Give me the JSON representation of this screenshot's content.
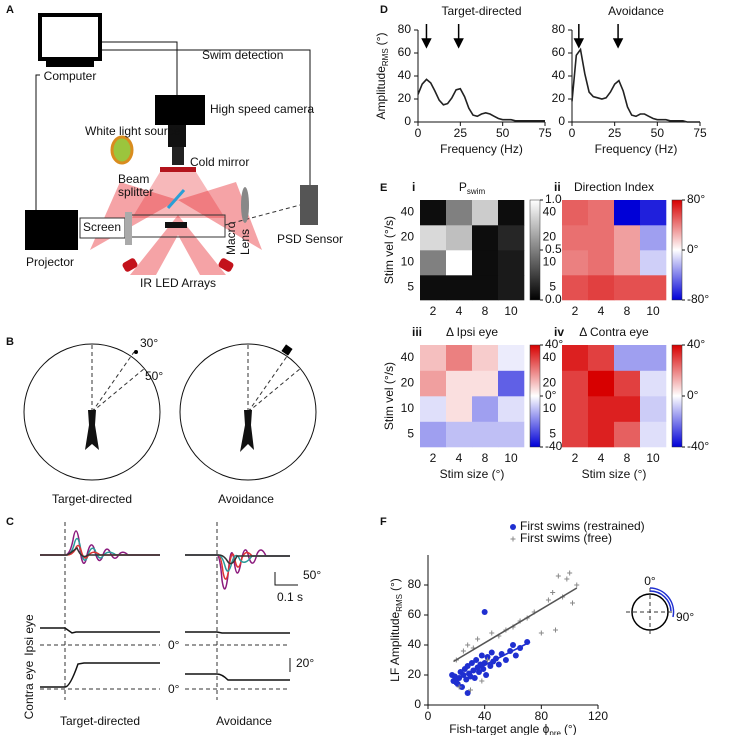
{
  "panel_labels": [
    "A",
    "B",
    "C",
    "D",
    "E",
    "F"
  ],
  "diagram_a": {
    "computer": "Computer",
    "swim_detection": "Swim detection",
    "camera": "High speed camera",
    "light_source": "White light source",
    "beam_splitter": [
      "Beam",
      "splitter"
    ],
    "cold_mirror": "Cold mirror",
    "projector": "Projector",
    "screen": "Screen",
    "macro_lens": [
      "Macro",
      "Lens"
    ],
    "psd_sensor": "PSD Sensor",
    "ir_led": "IR LED Arrays"
  },
  "diagram_b": {
    "angle_1": "30°",
    "angle_2": "50°",
    "labels": [
      "Target-directed",
      "Avoidance"
    ]
  },
  "diagram_c": {
    "scale_angle": "50°",
    "scale_time": "0.1 s",
    "ipsi": "Ipsi eye",
    "contra": "Contra eye",
    "zero_labels": [
      "0°",
      "0°"
    ],
    "scale_eye": "20°",
    "labels": [
      "Target-directed",
      "Avoidance"
    ]
  },
  "chart_data": [
    {
      "type": "line",
      "title": "Target-directed",
      "xlabel": "Frequency (Hz)",
      "ylabel": {
        "main": "Amplitude",
        "sub": "RMS",
        "unit": "(°)"
      },
      "x": [
        0,
        2.5,
        5,
        7.5,
        10,
        12.5,
        15,
        17.5,
        20,
        22.5,
        25,
        27.5,
        30,
        32.5,
        35,
        37.5,
        40,
        42.5,
        45,
        47.5,
        50,
        52.5,
        55,
        57.5,
        60,
        62.5,
        65,
        67.5,
        70,
        72.5,
        75
      ],
      "series": [
        {
          "color": "#222222",
          "values": [
            24,
            33,
            37,
            34,
            27,
            19,
            15,
            16,
            21,
            28,
            29,
            22,
            12,
            6,
            5,
            7,
            8,
            7,
            5,
            3,
            2,
            2,
            2,
            1,
            1,
            1,
            1,
            1,
            1,
            1,
            1
          ]
        }
      ],
      "arrows_x": [
        5,
        24
      ],
      "xlim": [
        0,
        75
      ],
      "xticks": [
        0,
        25,
        50,
        75
      ],
      "ylim": [
        0,
        80
      ],
      "yticks": [
        0,
        20,
        40,
        60,
        80
      ]
    },
    {
      "type": "line",
      "title": "Avoidance",
      "xlabel": "Frequency (Hz)",
      "x": [
        0,
        2.5,
        5,
        7.5,
        10,
        12.5,
        15,
        17.5,
        20,
        22.5,
        25,
        27.5,
        30,
        32.5,
        35,
        37.5,
        40,
        42.5,
        45,
        47.5,
        50,
        52.5,
        55,
        57.5,
        60,
        62.5,
        65,
        67.5,
        70,
        72.5,
        75
      ],
      "series": [
        {
          "color": "#222222",
          "values": [
            18,
            58,
            63,
            42,
            26,
            22,
            21,
            20,
            21,
            26,
            33,
            36,
            27,
            13,
            6,
            5,
            7,
            7,
            5,
            3,
            2,
            2,
            2,
            1,
            1,
            1,
            1,
            0,
            0,
            0,
            0
          ]
        }
      ],
      "arrows_x": [
        4,
        27
      ],
      "xlim": [
        0,
        75
      ],
      "xticks": [
        0,
        25,
        50,
        75
      ],
      "ylim": [
        0,
        80
      ],
      "yticks": [
        0,
        20,
        40,
        60,
        80
      ]
    },
    {
      "type": "heatmap",
      "panel": "i",
      "title": {
        "main": "P",
        "sub": "swim"
      },
      "ylabel": "Stim vel (°/s)",
      "categories": [
        2,
        4,
        8,
        10
      ],
      "y_categories": [
        5,
        10,
        20,
        40
      ],
      "values": [
        [
          0.05,
          0.05,
          0.05,
          0.1
        ],
        [
          0.5,
          1.0,
          0.05,
          0.1
        ],
        [
          0.85,
          0.75,
          0.05,
          0.15
        ],
        [
          0.05,
          0.5,
          0.8,
          0.05
        ]
      ],
      "colormap": "gray",
      "clim": [
        0,
        1
      ],
      "cticks": [
        {
          "value": 0,
          "label": "0.0"
        },
        0.5,
        {
          "value": 1,
          "label": "1.0"
        }
      ]
    },
    {
      "type": "heatmap",
      "panel": "ii",
      "title": "Direction Index",
      "categories": [
        2,
        4,
        8,
        10
      ],
      "y_categories": [
        5,
        10,
        20,
        40
      ],
      "values": [
        [
          55,
          60,
          55,
          55
        ],
        [
          40,
          45,
          30,
          -15
        ],
        [
          45,
          45,
          30,
          -30
        ],
        [
          50,
          45,
          -80,
          -70
        ]
      ],
      "colormap": "bwr",
      "clim": [
        -80,
        80
      ],
      "cticks": [
        {
          "value": 80,
          "label": "80°"
        },
        {
          "value": 0,
          "label": "0°"
        },
        {
          "value": -80,
          "label": "-80°"
        }
      ]
    },
    {
      "type": "heatmap",
      "panel": "iii",
      "title": "Δ Ipsi eye",
      "ylabel": "Stim vel (°/s)",
      "xlabel": "Stim size (°)",
      "categories": [
        2,
        4,
        8,
        10
      ],
      "y_categories": [
        5,
        10,
        20,
        40
      ],
      "values": [
        [
          -15,
          -10,
          -10,
          -10
        ],
        [
          -5,
          5,
          -15,
          -5
        ],
        [
          15,
          5,
          5,
          -25
        ],
        [
          10,
          20,
          8,
          -3
        ]
      ],
      "colormap": "bwr",
      "clim": [
        -40,
        40
      ],
      "cticks": [
        {
          "value": 40,
          "label": "40°"
        },
        {
          "value": 0,
          "label": "0°"
        },
        {
          "value": -40,
          "label": "-40°"
        }
      ]
    },
    {
      "type": "heatmap",
      "panel": "iv",
      "title": "Δ Contra eye",
      "xlabel": "Stim size (°)",
      "categories": [
        2,
        4,
        8,
        10
      ],
      "y_categories": [
        5,
        10,
        20,
        40
      ],
      "values": [
        [
          30,
          35,
          25,
          -5
        ],
        [
          30,
          35,
          35,
          -8
        ],
        [
          30,
          40,
          30,
          -5
        ],
        [
          35,
          30,
          -15,
          -15
        ]
      ],
      "colormap": "bwr",
      "clim": [
        -40,
        40
      ],
      "cticks": [
        {
          "value": 40,
          "label": "40°"
        },
        {
          "value": 0,
          "label": "0°"
        },
        {
          "value": -40,
          "label": "-40°"
        }
      ]
    },
    {
      "type": "scatter",
      "xlabel": {
        "main": "Fish-target angle ϕ",
        "sub": "pre",
        "unit": "(°)"
      },
      "ylabel": {
        "main": "LF Amplitude",
        "sub": "RMS",
        "unit": "(°)"
      },
      "series": [
        {
          "name": "First swims (restrained)",
          "color": "#1f2fd0",
          "marker": "circle",
          "x": [
            17,
            18,
            19,
            20,
            21,
            22,
            23,
            24,
            25,
            26,
            27,
            28,
            29,
            30,
            31,
            32,
            33,
            34,
            35,
            36,
            37,
            38,
            39,
            40,
            41,
            42,
            44,
            45,
            46,
            48,
            50,
            52,
            55,
            58,
            60,
            62,
            65,
            40,
            28,
            70
          ],
          "values": [
            20,
            16,
            19,
            15,
            14,
            18,
            22,
            12,
            20,
            24,
            17,
            26,
            21,
            19,
            28,
            23,
            18,
            30,
            25,
            22,
            27,
            33,
            24,
            28,
            20,
            32,
            26,
            35,
            29,
            31,
            27,
            34,
            30,
            36,
            40,
            33,
            38,
            62,
            8,
            42
          ]
        },
        {
          "name": "First swims (free)",
          "color": "#888888",
          "marker": "plus",
          "x": [
            20,
            22,
            25,
            28,
            30,
            32,
            35,
            38,
            42,
            45,
            50,
            55,
            60,
            65,
            70,
            75,
            80,
            85,
            88,
            90,
            95,
            98,
            100,
            102,
            105,
            92
          ],
          "values": [
            30,
            12,
            36,
            40,
            10,
            38,
            44,
            16,
            30,
            48,
            46,
            50,
            52,
            56,
            58,
            62,
            48,
            70,
            75,
            50,
            72,
            84,
            88,
            68,
            80,
            86
          ]
        }
      ],
      "fits": [
        {
          "color": "#1f2fd0",
          "x": [
            18,
            72
          ],
          "values": [
            16,
            42
          ]
        },
        {
          "color": "#555555",
          "x": [
            18,
            105
          ],
          "values": [
            29,
            78
          ]
        }
      ],
      "inset": {
        "top": "0°",
        "right": "90°"
      },
      "legend": "upper right",
      "xlim": [
        0,
        120
      ],
      "xticks": [
        0,
        40,
        80,
        120
      ],
      "ylim": [
        0,
        100
      ],
      "yticks": [
        0,
        20,
        40,
        60,
        80
      ]
    }
  ]
}
